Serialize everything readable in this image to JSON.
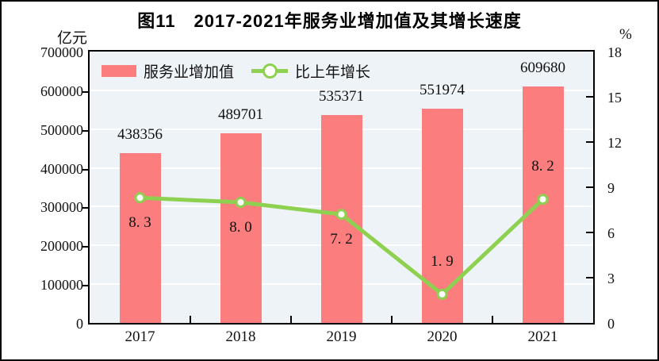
{
  "figure_title": "图11　2017-2021年服务业增加值及其增长速度",
  "axes": {
    "left_unit": "亿元",
    "right_unit": "%"
  },
  "legend": {
    "bar_label": "服务业增加值",
    "line_label": "比上年增长"
  },
  "colors": {
    "bar": "#fb7d7d",
    "line": "#8ed04f",
    "marker_fill": "#ffffff",
    "plot_bg": "#eef3f8",
    "gridline": "#ffffff",
    "axis": "#000000",
    "text": "#111111"
  },
  "chart_data": {
    "type": "bar+line combo",
    "title": "图11　2017-2021年服务业增加值及其增长速度",
    "categories": [
      "2017",
      "2018",
      "2019",
      "2020",
      "2021"
    ],
    "series": [
      {
        "name": "服务业增加值",
        "render": "bar",
        "axis": "left",
        "values": [
          438356,
          489701,
          535371,
          551974,
          609680
        ],
        "labels": [
          "438356",
          "489701",
          "535371",
          "551974",
          "609680"
        ],
        "color": "#fb7d7d"
      },
      {
        "name": "比上年增长",
        "render": "line",
        "axis": "right",
        "values": [
          8.3,
          8.0,
          7.2,
          1.9,
          8.2
        ],
        "labels": [
          "8. 3",
          "8. 0",
          "7. 2",
          "1. 9",
          "8. 2"
        ],
        "label_positions": [
          "below",
          "below",
          "below",
          "above",
          "above"
        ],
        "color": "#8ed04f"
      }
    ],
    "left_axis": {
      "unit": "亿元",
      "min": 0,
      "max": 700000,
      "step": 100000,
      "ticks": [
        "700000",
        "600000",
        "500000",
        "400000",
        "300000",
        "200000",
        "100000",
        "0"
      ]
    },
    "right_axis": {
      "unit": "%",
      "min": 0,
      "max": 18,
      "step": 3,
      "ticks": [
        "18",
        "15",
        "12",
        "9",
        "6",
        "3",
        "0"
      ]
    },
    "grid": true,
    "legend_position": "top-left-inside"
  }
}
